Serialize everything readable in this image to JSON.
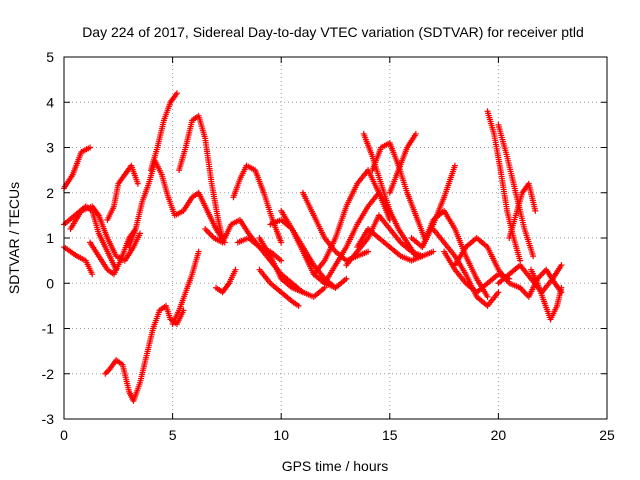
{
  "chart_data": {
    "type": "scatter",
    "title": "Day 224 of 2017, Sidereal Day-to-day VTEC variation (SDTVAR) for receiver ptld",
    "xlabel": "GPS time / hours",
    "ylabel": "SDTVAR / TECUs",
    "xlim": [
      0,
      25
    ],
    "ylim": [
      -3,
      5
    ],
    "xticks": [
      "0",
      "5",
      "10",
      "15",
      "20",
      "25"
    ],
    "yticks": [
      "-3",
      "-2",
      "-1",
      "0",
      "1",
      "2",
      "3",
      "4",
      "5"
    ],
    "grid": true,
    "marker": "+",
    "color": "#ff0000",
    "series": [
      {
        "x": [
          0.0,
          0.4,
          0.8,
          1.2
        ],
        "y": [
          2.1,
          2.4,
          2.9,
          3.0
        ]
      },
      {
        "x": [
          0.0,
          0.5,
          1.0,
          1.3,
          1.6,
          2.0,
          2.4
        ],
        "y": [
          1.3,
          1.5,
          1.7,
          1.6,
          1.1,
          0.7,
          0.3
        ]
      },
      {
        "x": [
          0.0,
          0.3,
          0.6,
          1.0,
          1.3
        ],
        "y": [
          0.8,
          0.7,
          0.6,
          0.5,
          0.2
        ]
      },
      {
        "x": [
          0.3,
          0.8,
          1.3,
          1.6,
          2.0,
          2.4,
          2.8,
          3.2,
          3.5
        ],
        "y": [
          1.2,
          1.6,
          1.7,
          1.5,
          1.0,
          0.6,
          0.5,
          0.8,
          1.1
        ]
      },
      {
        "x": [
          1.2,
          1.6,
          2.0,
          2.3,
          2.6,
          3.0,
          3.3
        ],
        "y": [
          0.9,
          0.6,
          0.3,
          0.2,
          0.5,
          1.0,
          1.2
        ]
      },
      {
        "x": [
          2.0,
          2.3,
          2.5,
          2.8,
          3.1,
          3.4
        ],
        "y": [
          1.4,
          1.7,
          2.2,
          2.4,
          2.6,
          2.2
        ]
      },
      {
        "x": [
          1.9,
          2.1,
          2.4,
          2.7,
          3.0,
          3.2,
          3.5,
          3.8,
          4.1,
          4.4,
          4.7,
          4.9,
          5.2,
          5.5
        ],
        "y": [
          -2.0,
          -1.9,
          -1.7,
          -1.8,
          -2.4,
          -2.6,
          -2.2,
          -1.6,
          -1.0,
          -0.6,
          -0.5,
          -0.8,
          -0.9,
          -0.6
        ]
      },
      {
        "x": [
          5.0,
          5.3,
          5.6,
          5.9,
          6.2
        ],
        "y": [
          -0.9,
          -0.6,
          -0.2,
          0.2,
          0.7
        ]
      },
      {
        "x": [
          3.0,
          3.3,
          3.6,
          3.9,
          4.2,
          4.5,
          4.8,
          5.1,
          5.5,
          5.9,
          6.2,
          6.6,
          7.0,
          7.4
        ],
        "y": [
          0.8,
          1.2,
          1.8,
          2.2,
          2.7,
          2.4,
          1.9,
          1.5,
          1.6,
          1.9,
          2.0,
          1.6,
          1.2,
          0.9
        ]
      },
      {
        "x": [
          4.0,
          4.3,
          4.6,
          4.9,
          5.2
        ],
        "y": [
          2.5,
          3.0,
          3.6,
          4.0,
          4.2
        ]
      },
      {
        "x": [
          5.3,
          5.6,
          5.9,
          6.2,
          6.5,
          6.8,
          7.1,
          7.3
        ],
        "y": [
          2.5,
          3.0,
          3.6,
          3.7,
          3.2,
          2.2,
          1.4,
          1.0
        ]
      },
      {
        "x": [
          6.5,
          6.9,
          7.3,
          7.7,
          8.1,
          8.5,
          9.0,
          9.5,
          10.0
        ],
        "y": [
          1.2,
          1.0,
          0.9,
          1.3,
          1.4,
          1.1,
          0.8,
          0.7,
          0.5
        ]
      },
      {
        "x": [
          7.0,
          7.3,
          7.6,
          7.9
        ],
        "y": [
          -0.1,
          -0.2,
          0.0,
          0.3
        ]
      },
      {
        "x": [
          7.8,
          8.1,
          8.4,
          8.8,
          9.2,
          9.6,
          10.0
        ],
        "y": [
          1.9,
          2.3,
          2.6,
          2.5,
          2.0,
          1.4,
          0.9
        ]
      },
      {
        "x": [
          8.0,
          8.5,
          9.0,
          9.5,
          10.0,
          10.5,
          11.0
        ],
        "y": [
          0.9,
          1.0,
          0.8,
          0.5,
          0.2,
          0.0,
          -0.2
        ]
      },
      {
        "x": [
          9.0,
          9.5,
          10.0,
          10.5,
          11.0,
          11.5,
          12.0
        ],
        "y": [
          1.0,
          0.6,
          0.1,
          -0.1,
          -0.2,
          -0.3,
          -0.1
        ]
      },
      {
        "x": [
          9.0,
          9.5,
          10.0,
          10.5,
          10.8
        ],
        "y": [
          0.3,
          0.0,
          -0.2,
          -0.4,
          -0.5
        ]
      },
      {
        "x": [
          9.5,
          10.0,
          10.5,
          11.0,
          11.5,
          12.0,
          12.5,
          13.0
        ],
        "y": [
          1.3,
          1.4,
          1.2,
          0.7,
          0.2,
          0.0,
          -0.1,
          0.1
        ]
      },
      {
        "x": [
          10.0,
          10.5,
          11.0,
          11.5,
          12.0,
          12.5
        ],
        "y": [
          1.6,
          1.2,
          0.8,
          0.4,
          0.1,
          -0.1
        ]
      },
      {
        "x": [
          11.0,
          11.5,
          12.0,
          12.5,
          13.0,
          13.5,
          14.0
        ],
        "y": [
          2.0,
          1.5,
          1.0,
          0.7,
          0.5,
          0.6,
          0.7
        ]
      },
      {
        "x": [
          11.5,
          12.0,
          12.5,
          13.0,
          13.5,
          14.0,
          14.5,
          15.0
        ],
        "y": [
          0.2,
          0.5,
          1.0,
          1.7,
          2.2,
          2.5,
          2.0,
          1.4
        ]
      },
      {
        "x": [
          12.0,
          12.5,
          13.0,
          13.5,
          14.0,
          14.5,
          15.0
        ],
        "y": [
          0.0,
          0.4,
          0.8,
          1.3,
          1.7,
          2.0,
          1.6
        ]
      },
      {
        "x": [
          13.0,
          13.5,
          14.0,
          14.5,
          15.0,
          15.5,
          16.0,
          16.5
        ],
        "y": [
          0.4,
          0.7,
          1.0,
          1.5,
          1.2,
          0.9,
          0.7,
          0.6
        ]
      },
      {
        "x": [
          13.5,
          14.0,
          14.5,
          15.0,
          15.5,
          16.0,
          16.5,
          17.0
        ],
        "y": [
          0.8,
          1.2,
          1.0,
          0.8,
          0.6,
          0.5,
          0.6,
          0.7
        ]
      },
      {
        "x": [
          13.8,
          14.2,
          14.6,
          15.0,
          15.4,
          15.8,
          16.2
        ],
        "y": [
          3.3,
          2.8,
          2.2,
          1.6,
          1.2,
          0.9,
          0.6
        ]
      },
      {
        "x": [
          14.2,
          14.6,
          15.0,
          15.4,
          15.8,
          16.2,
          16.6
        ],
        "y": [
          2.5,
          3.0,
          3.1,
          2.6,
          2.0,
          1.5,
          1.0
        ]
      },
      {
        "x": [
          15.0,
          15.4,
          15.8,
          16.2
        ],
        "y": [
          2.0,
          2.5,
          3.0,
          3.3
        ]
      },
      {
        "x": [
          16.0,
          16.5,
          17.0,
          17.5,
          18.0
        ],
        "y": [
          1.0,
          0.8,
          1.3,
          1.9,
          2.6
        ]
      },
      {
        "x": [
          16.5,
          17.0,
          17.5,
          18.0,
          18.5,
          19.0,
          19.5
        ],
        "y": [
          0.8,
          1.4,
          1.6,
          1.2,
          0.6,
          0.1,
          -0.3
        ]
      },
      {
        "x": [
          17.0,
          17.5,
          18.0,
          18.5,
          19.0,
          19.5,
          20.0
        ],
        "y": [
          1.2,
          0.9,
          0.6,
          0.2,
          -0.3,
          -0.5,
          -0.2
        ]
      },
      {
        "x": [
          17.5,
          18.0,
          18.5,
          19.0,
          19.5,
          20.0,
          20.5
        ],
        "y": [
          0.7,
          0.3,
          0.0,
          -0.2,
          0.0,
          0.2,
          0.1
        ]
      },
      {
        "x": [
          18.0,
          18.5,
          19.0,
          19.5,
          20.0,
          20.5,
          21.0
        ],
        "y": [
          0.4,
          0.8,
          1.0,
          0.8,
          0.3,
          0.0,
          -0.1
        ]
      },
      {
        "x": [
          19.5,
          19.8,
          20.1,
          20.4,
          20.7,
          21.0
        ],
        "y": [
          3.8,
          3.3,
          2.5,
          1.6,
          1.0,
          0.5
        ]
      },
      {
        "x": [
          20.0,
          20.4,
          20.8,
          21.2,
          21.6
        ],
        "y": [
          3.5,
          2.8,
          2.0,
          1.2,
          0.6
        ]
      },
      {
        "x": [
          20.5,
          20.8,
          21.1,
          21.4,
          21.7
        ],
        "y": [
          1.0,
          1.5,
          2.0,
          2.2,
          1.6
        ]
      },
      {
        "x": [
          20.0,
          20.5,
          21.0,
          21.5,
          22.0,
          22.5,
          22.9
        ],
        "y": [
          0.0,
          0.2,
          0.4,
          0.1,
          -0.2,
          0.1,
          0.4
        ]
      },
      {
        "x": [
          21.0,
          21.4,
          21.8,
          22.2,
          22.6,
          22.9
        ],
        "y": [
          -0.1,
          -0.3,
          0.1,
          0.3,
          0.0,
          -0.2
        ]
      },
      {
        "x": [
          21.5,
          21.8,
          22.1,
          22.4,
          22.7,
          22.9
        ],
        "y": [
          0.3,
          0.0,
          -0.4,
          -0.8,
          -0.5,
          -0.1
        ]
      }
    ]
  }
}
